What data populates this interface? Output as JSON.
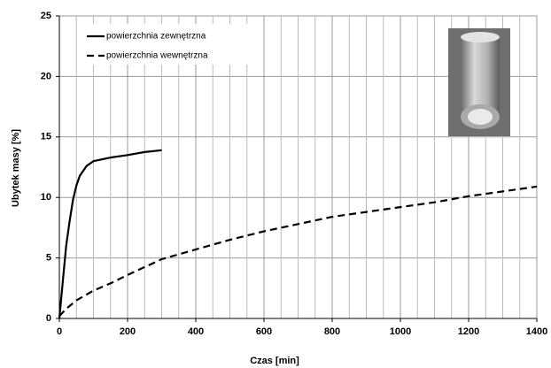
{
  "chart_data": {
    "type": "line",
    "x_label": "Czas [min]",
    "y_label": "Ubytek masy [%]",
    "xlim": [
      0,
      1400
    ],
    "xticks": [
      0,
      200,
      400,
      600,
      800,
      1000,
      1200,
      1400
    ],
    "ylim": [
      0,
      25
    ],
    "yticks": [
      0,
      5,
      10,
      15,
      20,
      25
    ],
    "grid": true,
    "legend": "upper left",
    "series": [
      {
        "name": "powierzchnia zewnętrzna",
        "color": "#000000",
        "dash": "solid",
        "x": [
          0,
          10,
          20,
          30,
          40,
          50,
          60,
          80,
          100,
          150,
          200,
          250,
          300
        ],
        "values": [
          0,
          3,
          6,
          8,
          9.8,
          11,
          11.8,
          12.6,
          13,
          13.3,
          13.5,
          13.75,
          13.9
        ]
      },
      {
        "name": "powierzchnia wewnętrzna",
        "color": "#000000",
        "dash": "dashed",
        "x": [
          0,
          20,
          50,
          100,
          150,
          200,
          300,
          400,
          500,
          600,
          700,
          800,
          900,
          1000,
          1100,
          1200,
          1300,
          1400
        ],
        "values": [
          0.2,
          0.8,
          1.5,
          2.3,
          2.9,
          3.6,
          4.9,
          5.7,
          6.5,
          7.2,
          7.8,
          8.4,
          8.8,
          9.2,
          9.6,
          10.1,
          10.5,
          10.9
        ]
      }
    ]
  }
}
